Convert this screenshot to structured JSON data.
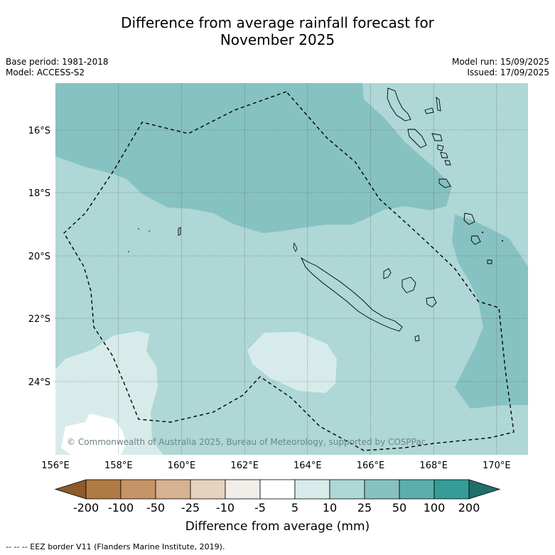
{
  "title_line1": "Difference from average rainfall forecast for",
  "title_line2": "November 2025",
  "meta_left": [
    "Base period: 1981-2018",
    "Model: ACCESS-S2"
  ],
  "meta_right": [
    "Model run: 15/09/2025",
    "Issued: 17/09/2025"
  ],
  "lon_ticks": [
    "156°E",
    "158°E",
    "160°E",
    "162°E",
    "164°E",
    "166°E",
    "168°E",
    "170°E"
  ],
  "lat_ticks": [
    "16°S",
    "18°S",
    "20°S",
    "22°S",
    "24°S"
  ],
  "copyright": "© Commonwealth of Australia 2025, Bureau of Meteorology, supported by COSPPac",
  "colorbar": {
    "labels": [
      "-200",
      "-100",
      "-50",
      "-25",
      "-10",
      "-5",
      "5",
      "10",
      "25",
      "50",
      "100",
      "200"
    ],
    "colors": [
      "#8c5a2b",
      "#b07a44",
      "#c49467",
      "#d6b192",
      "#e7d1bf",
      "#f1ede9",
      "#ffffff",
      "#d7ecea",
      "#aed7d6",
      "#86c2c1",
      "#5aaeac",
      "#359c98",
      "#1f6f6b"
    ],
    "title": "Difference from average (mm)"
  },
  "footnote": "--  --  -- EEZ border V11 (Flanders Marine Institute, 2019).",
  "colors": {
    "band_10_25": "#aed7d6",
    "band_25_50": "#86c2c1",
    "band_5_10": "#d7ecea",
    "band_white": "#ffffff"
  }
}
